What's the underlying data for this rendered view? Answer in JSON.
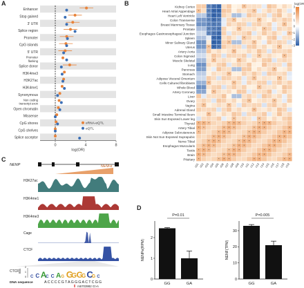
{
  "panel_labels": {
    "a": "A",
    "b": "B",
    "c": "C",
    "d": "D"
  },
  "colors": {
    "orange": "#e8833a",
    "blue": "#3b6fb6",
    "heat_high": "#e8833a",
    "heat_low": "#2d5fa8",
    "band": "#e4e4e4",
    "h3k27ac": "#2e6e6e",
    "h3k4me1": "#a3231f",
    "h3k4me3": "#3a9b35",
    "cage": "#2f4a9e",
    "ctcf": "#1f3f9a",
    "gene": "#e8a06a"
  },
  "chart_data": [
    {
      "type": "scatter",
      "panel": "A",
      "categories": [
        "Enhancer",
        "Stop gained",
        "3' UTR",
        "Splice region",
        "Promoter",
        "CpG islands",
        "5' UTR",
        "Promoter flanking",
        "Splice donor",
        "H3K4me3",
        "H3K27ac",
        "H3K4me1",
        "Synonymous",
        "Non coding transcript exon",
        "Open chromatin",
        "Missense",
        "CpG shores",
        "CpG shelves",
        "Splice acceptor"
      ],
      "series": [
        {
          "name": "eRNA-eQTL",
          "values": [
            4.1,
            2.6,
            2.3,
            2.0,
            1.5,
            1.4,
            1.3,
            1.0,
            1.9,
            1.2,
            1.1,
            0.9,
            0.6,
            0.5,
            0.4,
            0.2,
            0.1,
            0.0,
            0.0
          ]
        },
        {
          "name": "eQTL",
          "values": [
            1.5,
            1.3,
            1.5,
            2.6,
            1.6,
            1.5,
            1.1,
            1.5,
            0.8,
            0.9,
            1.0,
            1.2,
            0.3,
            0.8,
            0.6,
            0.0,
            0.3,
            0.0,
            3.2
          ]
        }
      ],
      "xlabel": "log(OR)",
      "xticks": [
        "0",
        "4",
        "8"
      ],
      "xlim": [
        -2,
        8
      ],
      "legend": "bottom-right"
    },
    {
      "type": "heatmap",
      "panel": "B",
      "rows": [
        "Kidney Cortex",
        "Heart Atrial Appendage",
        "Heart Left Ventricle",
        "Colon Transverse",
        "Breast Mammary Tissue",
        "Prostate",
        "Esophagus Gastroesophageal Junction",
        "Spleen",
        "Minor Salivary Gland",
        "Uterus",
        "Artery Aorta",
        "Colon Sigmoid",
        "Muscle Skeletal",
        "Lung",
        "Pancreas",
        "Stomach",
        "Adipose Visceral Omentum",
        "Cells Cultured fibroblasts",
        "Whole Blood",
        "Artery Coronary",
        "Liver",
        "Ovary",
        "Vagina",
        "Adrenal Gland",
        "Small Intestine Terminal Ileum",
        "Skin Sun Exposed Lower leg",
        "Thyroid",
        "Artery Tibial",
        "Adipose Subcutaneous",
        "Skin Not Sun Exposed Suprapubic",
        "Nerve Tibial",
        "Esophagus Muscularis",
        "Testis",
        "Brain",
        "Pituitary"
      ],
      "columns": [
        "c01",
        "c02",
        "c03",
        "c04",
        "c05",
        "c06",
        "c07",
        "c08",
        "c09",
        "c10",
        "c11",
        "c12",
        "c13",
        "c14",
        "c15",
        "c16",
        "c17",
        "c18",
        "c19"
      ],
      "scale_label": "log(OR)",
      "scale_ticks": [
        "3",
        "2",
        "1",
        "0",
        "−1",
        "−2",
        "−3"
      ],
      "vlim": [
        -3,
        3
      ]
    },
    {
      "type": "bar",
      "panel": "D-left",
      "categories": [
        "GG",
        "GA"
      ],
      "values": [
        2.45,
        1.0
      ],
      "errors": [
        0.03,
        0.35
      ],
      "ylabel": "NENPe(RPM)",
      "ylim": [
        0,
        2.8
      ],
      "yticks": [
        "0",
        "1",
        "2"
      ],
      "annotation": "P=0.01"
    },
    {
      "type": "bar",
      "panel": "D-right",
      "categories": [
        "GG",
        "GA"
      ],
      "values": [
        33,
        21
      ],
      "errors": [
        0.8,
        2.5
      ],
      "ylabel": "NENF(TPM)",
      "ylim": [
        0,
        36
      ],
      "yticks": [
        "0",
        "10",
        "20",
        "30"
      ],
      "annotation": "P=0.005"
    }
  ],
  "panel_c": {
    "gene_label": "NENP",
    "gene2_label": "NENFe",
    "tracks": [
      {
        "label": "H3K27ac",
        "color_key": "h3k27ac"
      },
      {
        "label": "H3K4me1",
        "color_key": "h3k4me1"
      },
      {
        "label": "H3K4me3",
        "color_key": "h3k4me3"
      },
      {
        "label": "Cage",
        "color_key": "cage"
      },
      {
        "label": "CTCF",
        "color_key": "ctcf"
      }
    ],
    "motif_label": "CTCF",
    "bits_label": "Bits",
    "bits_ticks": [
      "0",
      "1",
      "2"
    ],
    "motif_letters": "CCACCAGGGGGCGC",
    "dna_label": "DNA sequence",
    "dna_sequence": "ACCCCGTAGGGACTCGG",
    "variant": "rs6703982 G>A"
  }
}
